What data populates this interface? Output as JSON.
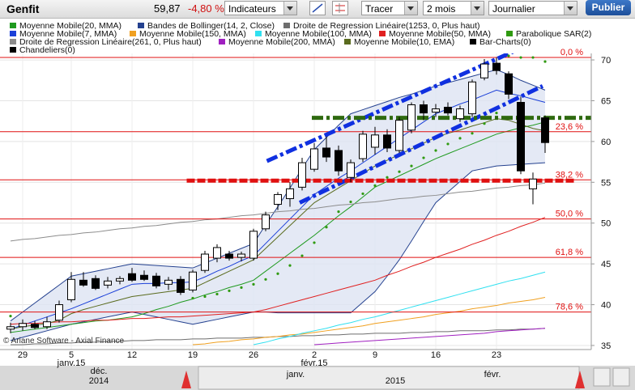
{
  "toolbar": {
    "symbol": "Genfit",
    "price": "59,87",
    "change": "-4,80 %",
    "indicators": "Indicateurs",
    "draw": "Tracer",
    "period": "2 mois",
    "interval": "Journalier",
    "publish": "Publier"
  },
  "navigator": {
    "labels": [
      "déc.",
      "2014",
      "janv.",
      "2015",
      "févr."
    ]
  },
  "chart_data": {
    "type": "candlestick",
    "watermark": "© Ariane Software - Axial Finance",
    "categories": [
      null,
      "29",
      null,
      null,
      null,
      "5",
      null,
      null,
      null,
      null,
      "12",
      null,
      null,
      null,
      null,
      "19",
      null,
      null,
      null,
      null,
      "26",
      null,
      null,
      null,
      null,
      "2",
      null,
      null,
      null,
      null,
      "9",
      null,
      null,
      null,
      null,
      "16",
      null,
      null,
      null,
      null,
      "23",
      null,
      null,
      null,
      null
    ],
    "month_labels": [
      {
        "label": "janv.15",
        "at": 5
      },
      {
        "label": "févr.15",
        "at": 25
      }
    ],
    "ylim": [
      34.5,
      70.8
    ],
    "yticks": [
      35,
      40,
      45,
      50,
      55,
      60,
      65,
      70
    ],
    "grid": true,
    "ohlc": {
      "names": [
        "Bar-Charts(0)",
        "Chandeliers(0)"
      ],
      "color": "#000000",
      "open": [
        37.0,
        37.3,
        37.6,
        37.3,
        38.1,
        40.6,
        43.0,
        43.2,
        42.4,
        42.9,
        43.8,
        43.6,
        43.5,
        42.5,
        43.1,
        41.8,
        44.2,
        45.7,
        46.2,
        45.8,
        45.7,
        49.3,
        52.3,
        53.0,
        54.4,
        56.6,
        59.2,
        58.9,
        55.6,
        57.9,
        59.3,
        60.8,
        58.9,
        61.4,
        64.5,
        63.6,
        64.2,
        62.8,
        63.4,
        67.8,
        69.6,
        68.3,
        64.8,
        54.2,
        62.9
      ],
      "high": [
        37.8,
        38.2,
        38.0,
        38.5,
        40.5,
        44.0,
        44.0,
        43.6,
        43.4,
        43.5,
        44.5,
        44.2,
        43.9,
        43.4,
        43.5,
        44.3,
        46.6,
        47.4,
        46.6,
        46.5,
        49.3,
        51.4,
        53.8,
        55.0,
        58.0,
        59.8,
        60.6,
        59.5,
        57.8,
        61.3,
        61.8,
        61.5,
        63.0,
        64.8,
        65.0,
        64.6,
        64.8,
        64.4,
        67.6,
        70.1,
        70.3,
        68.6,
        65.5,
        56.2,
        63.2
      ],
      "low": [
        36.5,
        36.8,
        37.0,
        37.0,
        37.8,
        40.3,
        42.2,
        41.8,
        42.0,
        42.5,
        42.8,
        42.9,
        42.0,
        41.8,
        41.2,
        41.5,
        43.9,
        45.2,
        45.4,
        45.3,
        45.4,
        49.0,
        51.6,
        52.0,
        54.0,
        56.3,
        57.5,
        55.8,
        55.0,
        57.5,
        58.4,
        58.7,
        58.6,
        61.0,
        62.6,
        63.0,
        63.2,
        62.4,
        63.0,
        67.5,
        68.2,
        65.2,
        56.0,
        52.3,
        58.6
      ],
      "close": [
        37.3,
        37.7,
        37.2,
        37.9,
        40.0,
        43.1,
        42.4,
        42.0,
        42.9,
        43.2,
        43.0,
        43.1,
        42.3,
        43.0,
        41.5,
        44.0,
        46.2,
        47.0,
        45.7,
        46.2,
        49.0,
        51.0,
        53.5,
        54.2,
        57.4,
        59.1,
        58.1,
        56.4,
        57.4,
        60.9,
        60.8,
        59.2,
        62.6,
        64.5,
        63.5,
        64.0,
        63.5,
        64.0,
        67.3,
        69.5,
        68.7,
        65.8,
        56.4,
        55.4,
        59.87
      ]
    },
    "series": [
      {
        "name": "Moyenne Mobile(20, MMA)",
        "color": "#1f9a1f",
        "values": [
          36.6,
          36.8,
          37.0,
          37.2,
          37.4,
          37.6,
          37.8,
          38.0,
          38.1,
          38.3,
          38.5,
          38.9,
          39.4,
          39.8,
          40.3,
          40.7,
          41.2,
          41.6,
          42.1,
          42.5,
          43.0,
          44.1,
          45.2,
          46.3,
          47.4,
          48.5,
          49.7,
          50.9,
          52.0,
          53.2,
          54.4,
          55.1,
          55.8,
          56.5,
          57.2,
          57.9,
          58.5,
          59.1,
          59.7,
          60.3,
          60.9,
          61.3,
          61.7,
          62.0,
          62.4
        ]
      },
      {
        "name": "Bandes de Bollinger(14, 2, Close)",
        "color": "#24418f",
        "fill": "#dde4f3",
        "upper": [
          38.0,
          39.1,
          40.2,
          41.3,
          42.4,
          43.5,
          43.8,
          44.1,
          44.4,
          44.7,
          45.0,
          44.9,
          44.8,
          44.7,
          44.6,
          44.5,
          45.1,
          45.7,
          46.3,
          46.9,
          47.5,
          49.8,
          52.0,
          54.3,
          56.7,
          59.0,
          60.5,
          62.0,
          63.4,
          63.9,
          64.4,
          64.9,
          65.4,
          65.8,
          66.3,
          66.8,
          67.2,
          67.6,
          68.0,
          68.4,
          68.8,
          68.2,
          67.5,
          66.9,
          66.3
        ],
        "lower": [
          35.6,
          36.0,
          36.4,
          36.8,
          37.2,
          37.6,
          37.9,
          38.2,
          38.5,
          38.8,
          39.1,
          38.8,
          38.5,
          38.2,
          37.9,
          37.6,
          37.9,
          38.2,
          38.5,
          38.8,
          39.1,
          39.1,
          39.0,
          39.0,
          39.0,
          39.0,
          39.0,
          39.0,
          39.0,
          40.3,
          41.6,
          43.5,
          45.5,
          47.8,
          50.2,
          52.5,
          53.8,
          55.1,
          56.4,
          56.7,
          57.0,
          57.1,
          57.2,
          57.3,
          57.4
        ]
      },
      {
        "name": "Droite de Regression Linéaire(1253, 0, Plus haut)",
        "color": "#6e6e6e",
        "values": [
          35.1,
          35.1,
          35.2,
          35.2,
          35.3,
          35.3,
          35.4,
          35.4,
          35.5,
          35.5,
          35.6,
          35.6,
          35.7,
          35.7,
          35.7,
          35.8,
          35.8,
          35.9,
          35.9,
          35.9,
          36.0,
          36.0,
          36.1,
          36.1,
          36.2,
          36.2,
          36.3,
          36.3,
          36.4,
          36.4,
          36.5,
          36.5,
          36.5,
          36.6,
          36.6,
          36.7,
          36.7,
          36.8,
          36.8,
          36.8,
          36.9,
          36.9,
          37.0,
          37.0,
          37.1
        ]
      },
      {
        "name": "Moyenne Mobile(7, MMA)",
        "color": "#1a3fd8",
        "values": [
          37.0,
          37.5,
          38.0,
          38.5,
          39.0,
          39.5,
          40.1,
          40.7,
          41.3,
          41.9,
          42.5,
          42.6,
          42.6,
          42.7,
          42.7,
          42.8,
          43.4,
          44.1,
          44.7,
          45.4,
          46.0,
          47.5,
          49.0,
          50.5,
          52.0,
          53.5,
          54.5,
          55.5,
          56.4,
          57.4,
          58.4,
          59.4,
          60.4,
          61.4,
          62.4,
          63.4,
          64.0,
          64.6,
          65.1,
          65.7,
          66.3,
          65.9,
          65.6,
          65.2,
          64.8
        ]
      },
      {
        "name": "Moyenne Mobile(150, MMA)",
        "color": "#f0a020",
        "values": [
          null,
          null,
          null,
          null,
          null,
          null,
          null,
          null,
          null,
          null,
          null,
          null,
          null,
          null,
          null,
          35.1,
          35.2,
          35.4,
          35.5,
          35.7,
          35.8,
          36.0,
          36.1,
          36.3,
          36.4,
          36.6,
          36.8,
          37.0,
          37.2,
          37.4,
          37.7,
          37.9,
          38.1,
          38.3,
          38.5,
          38.8,
          39.0,
          39.2,
          39.5,
          39.7,
          39.9,
          40.2,
          40.4,
          40.6,
          40.9
        ]
      },
      {
        "name": "Moyenne Mobile(100, MMA)",
        "color": "#30e0f0",
        "values": [
          null,
          null,
          null,
          null,
          null,
          null,
          null,
          null,
          null,
          null,
          null,
          null,
          null,
          null,
          null,
          null,
          null,
          null,
          null,
          null,
          35.1,
          35.4,
          35.8,
          36.1,
          36.5,
          36.8,
          37.1,
          37.5,
          37.8,
          38.2,
          38.5,
          38.9,
          39.3,
          39.7,
          40.1,
          40.5,
          40.9,
          41.3,
          41.7,
          42.1,
          42.5,
          42.9,
          43.2,
          43.6,
          44.0
        ]
      },
      {
        "name": "Moyenne Mobile(50, MMA)",
        "color": "#e02020",
        "values": [
          37.6,
          37.7,
          37.7,
          37.8,
          37.9,
          37.9,
          38.0,
          38.1,
          38.1,
          38.2,
          38.3,
          38.3,
          38.4,
          38.5,
          38.5,
          38.6,
          38.7,
          38.8,
          38.9,
          39.0,
          39.1,
          39.4,
          39.8,
          40.2,
          40.6,
          41.0,
          41.4,
          41.8,
          42.2,
          42.6,
          43.0,
          43.6,
          44.1,
          44.7,
          45.2,
          45.8,
          46.3,
          46.8,
          47.4,
          47.9,
          48.5,
          49.0,
          49.6,
          50.1,
          50.7
        ]
      },
      {
        "name": "Parabolique SAR(2)",
        "color": "#2f9a10",
        "marker": "dot",
        "values": [
          38.6,
          null,
          null,
          null,
          null,
          null,
          null,
          null,
          null,
          null,
          null,
          null,
          null,
          null,
          null,
          40.8,
          41.0,
          41.3,
          41.7,
          42.1,
          42.5,
          43.1,
          43.8,
          44.8,
          46.0,
          47.6,
          49.5,
          51.4,
          52.6,
          53.6,
          54.6,
          55.6,
          56.3,
          57.0,
          58.0,
          58.9,
          59.7,
          60.4,
          61.0,
          62.2,
          63.5,
          70.5,
          70.3,
          70.3,
          69.8
        ]
      },
      {
        "name": "Droite de Regression Linéaire(261, 0, Plus haut)",
        "color": "#8c8c8c",
        "values": [
          47.8,
          48.0,
          48.1,
          48.3,
          48.5,
          48.6,
          48.8,
          48.9,
          49.1,
          49.3,
          49.4,
          49.6,
          49.7,
          49.9,
          50.1,
          50.2,
          50.4,
          50.5,
          50.7,
          50.9,
          51.0,
          51.2,
          51.4,
          51.5,
          51.7,
          51.8,
          52.0,
          52.2,
          52.3,
          52.5,
          52.6,
          52.8,
          53.0,
          53.1,
          53.3,
          53.4,
          53.6,
          53.8,
          53.9,
          54.1,
          54.3,
          54.4,
          54.6,
          54.7,
          54.9
        ]
      },
      {
        "name": "Moyenne Mobile(200, MMA)",
        "color": "#a020c0",
        "values": [
          null,
          null,
          null,
          null,
          null,
          null,
          null,
          null,
          null,
          null,
          null,
          null,
          null,
          null,
          null,
          null,
          null,
          null,
          null,
          null,
          null,
          null,
          null,
          null,
          null,
          35.1,
          35.2,
          35.3,
          35.4,
          35.5,
          35.6,
          35.7,
          35.8,
          35.9,
          36.0,
          36.1,
          36.2,
          36.3,
          36.4,
          36.5,
          36.7,
          36.8,
          36.9,
          37.0,
          37.1
        ]
      },
      {
        "name": "Moyenne Mobile(10, EMA)",
        "color": "#5a6b1e",
        "values": [
          37.0,
          37.3,
          37.5,
          37.7,
          38.1,
          38.9,
          39.4,
          39.8,
          40.2,
          40.6,
          41.0,
          41.2,
          41.4,
          41.6,
          41.8,
          42.0,
          42.7,
          43.4,
          44.1,
          44.8,
          45.5,
          46.9,
          48.3,
          49.7,
          51.1,
          52.5,
          53.4,
          54.3,
          55.2,
          56.1,
          57.0,
          57.7,
          58.4,
          59.1,
          59.8,
          60.5,
          61.0,
          61.4,
          61.9,
          62.3,
          62.8,
          62.6,
          62.1,
          61.6,
          61.3
        ]
      }
    ],
    "fib_color": "#e01010",
    "fib_levels": [
      {
        "label": "0,0 %",
        "value": 70.3
      },
      {
        "label": "23,6 %",
        "value": 61.2
      },
      {
        "label": "38,2 %",
        "value": 55.3
      },
      {
        "label": "50,0 %",
        "value": 50.5
      },
      {
        "label": "61,8 %",
        "value": 45.8
      },
      {
        "label": "78,6 %",
        "value": 39.1
      }
    ],
    "drawings": [
      {
        "x": [
          21.1,
          41.5
        ],
        "values": [
          57.6,
          71.1
        ],
        "color": "#1030e0",
        "dash": "dashdot"
      },
      {
        "x": [
          23.8,
          43.8
        ],
        "values": [
          52.5,
          66.8
        ],
        "color": "#1030e0",
        "dash": "dashdot"
      },
      {
        "x": [
          24.8,
          49.8
        ],
        "values": [
          62.9,
          62.9
        ],
        "color": "#2f6a10",
        "dash": "dashdot"
      },
      {
        "x": [
          14.5,
          46.5
        ],
        "values": [
          55.2,
          55.2
        ],
        "color": "#e01010",
        "dash": "dash"
      }
    ]
  }
}
